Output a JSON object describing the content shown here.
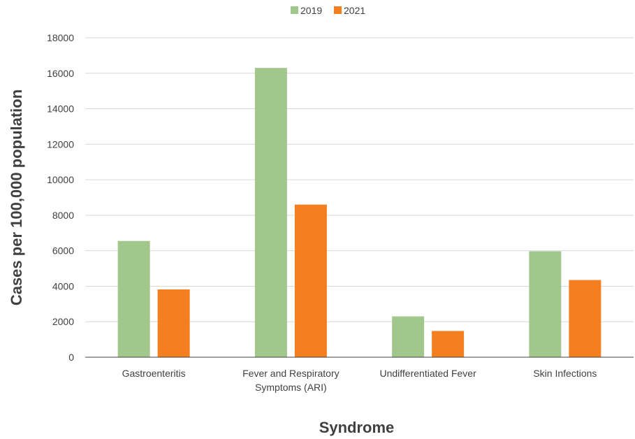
{
  "chart_data": {
    "type": "bar",
    "categories": [
      [
        "Gastroenteritis"
      ],
      [
        "Fever and Respiratory",
        "Symptoms (ARI)"
      ],
      [
        "Undifferentiated Fever"
      ],
      [
        "Skin Infections"
      ]
    ],
    "series": [
      {
        "name": "2019",
        "color": "#a2c78c",
        "values": [
          6550,
          16300,
          2300,
          5970
        ]
      },
      {
        "name": "2021",
        "color": "#f47f20",
        "values": [
          3820,
          8600,
          1480,
          4350
        ]
      }
    ],
    "xlabel": "Syndrome",
    "ylabel": "Cases per 100,000 population",
    "ylim": [
      0,
      18000
    ],
    "yticks": [
      0,
      2000,
      4000,
      6000,
      8000,
      10000,
      12000,
      14000,
      16000,
      18000
    ],
    "grid": true,
    "legend_position": "top-center"
  }
}
